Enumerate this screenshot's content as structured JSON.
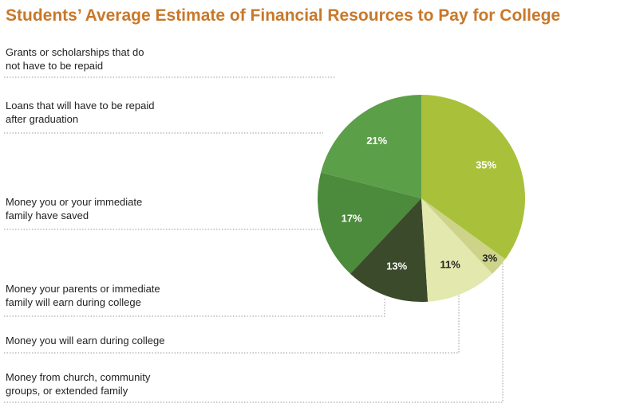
{
  "chart_data": {
    "type": "pie",
    "title": "Students’ Average Estimate of Financial Resources to Pay for College",
    "categories": [
      "Grants or scholarships that do not have to be repaid",
      "Loans that will have to be repaid after graduation",
      "Money you or your immediate family have saved",
      "Money your parents or immediate family will earn during college",
      "Money you will earn during college",
      "Money from church, community groups, or extended family"
    ],
    "values": [
      35,
      21,
      17,
      13,
      11,
      3
    ],
    "value_labels": [
      "35%",
      "21%",
      "17%",
      "13%",
      "11%",
      "3%"
    ],
    "colors": [
      "#a9c13a",
      "#5c9f49",
      "#4c8a3c",
      "#3b4a2b",
      "#e3e9ae",
      "#cdd489"
    ]
  }
}
